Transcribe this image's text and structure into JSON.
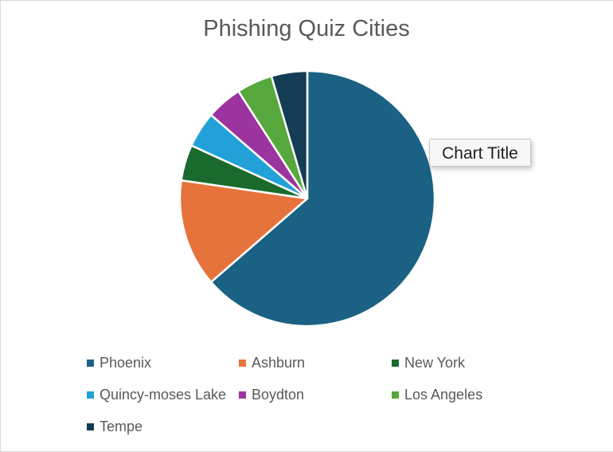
{
  "chart_data": {
    "type": "pie",
    "title": "Phishing Quiz Cities",
    "categories": [
      "Phoenix",
      "Ashburn",
      "New York",
      "Quincy-moses Lake",
      "Boydton",
      "Los Angeles",
      "Tempe"
    ],
    "values": [
      14,
      3,
      1,
      1,
      1,
      1,
      1
    ],
    "colors": [
      "#1b6183",
      "#e7733c",
      "#1b6a2d",
      "#22a1d9",
      "#9b349e",
      "#56a83c",
      "#143d55"
    ],
    "legend_position": "bottom",
    "start_angle_deg": 0,
    "direction": "clockwise"
  },
  "tooltip": {
    "text": "Chart Title"
  }
}
